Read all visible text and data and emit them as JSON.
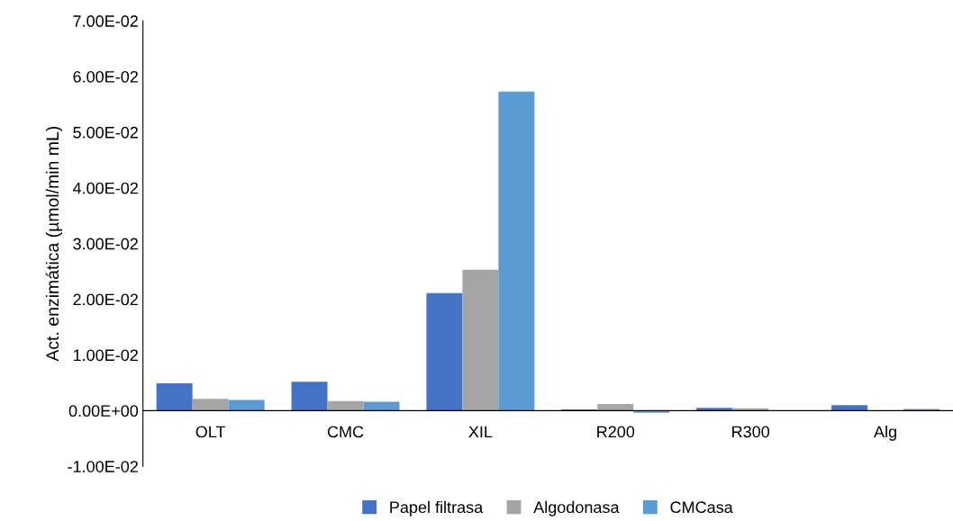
{
  "chart_data": {
    "type": "bar",
    "ylabel": "Act. enzimática (µmol/min mL)",
    "categories": [
      "OLT",
      "CMC",
      "XIL",
      "R200",
      "R300",
      "Alg"
    ],
    "series": [
      {
        "name": "Papel filtrasa",
        "color": "#4472c4",
        "values": [
          0.0049,
          0.0052,
          0.0211,
          0.0002,
          0.0005,
          0.001
        ]
      },
      {
        "name": "Algodonasa",
        "color": "#a5a5a5",
        "values": [
          0.0021,
          0.0017,
          0.0253,
          0.0012,
          0.0004,
          null
        ]
      },
      {
        "name": "CMCasa",
        "color": "#5b9bd5",
        "values": [
          0.0019,
          0.0016,
          0.0573,
          -0.0004,
          0,
          0.0003
        ]
      }
    ],
    "ylim": [
      -0.01,
      0.07
    ],
    "yticks": [
      {
        "value": -0.01,
        "label": "-1.00E-02"
      },
      {
        "value": 0,
        "label": "0.00E+00"
      },
      {
        "value": 0.01,
        "label": "1.00E-02"
      },
      {
        "value": 0.02,
        "label": "2.00E-02"
      },
      {
        "value": 0.03,
        "label": "3.00E-02"
      },
      {
        "value": 0.04,
        "label": "4.00E-02"
      },
      {
        "value": 0.05,
        "label": "5.00E-02"
      },
      {
        "value": 0.06,
        "label": "6.00E-02"
      },
      {
        "value": 0.07,
        "label": "7.00E-02"
      }
    ],
    "grid": false,
    "legend": "bottom"
  }
}
